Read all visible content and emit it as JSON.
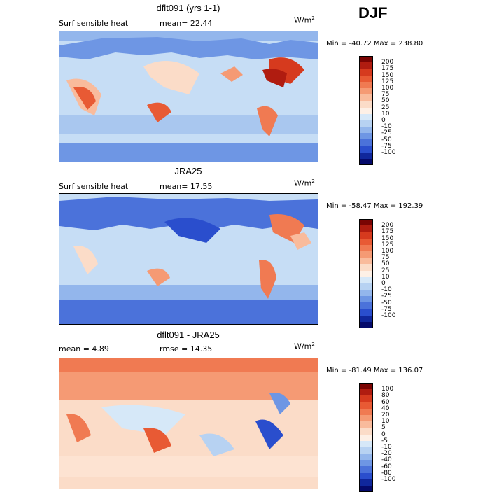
{
  "season": "DJF",
  "panels": [
    {
      "title": "dflt091 (yrs 1-1)",
      "left_label": "Surf sensible heat",
      "stat_label": "mean=  22.44",
      "units": "W/m",
      "units_sup": "2",
      "minmax": "Min = -40.72 Max = 238.80",
      "levels": [
        "200",
        "175",
        "150",
        "125",
        "100",
        "75",
        "50",
        "25",
        "10",
        "0",
        "-10",
        "-25",
        "-50",
        "-75",
        "-100"
      ]
    },
    {
      "title": "JRA25",
      "left_label": "Surf sensible heat",
      "stat_label": "mean=  17.55",
      "units": "W/m",
      "units_sup": "2",
      "minmax": "Min = -58.47 Max = 192.39",
      "levels": [
        "200",
        "175",
        "150",
        "125",
        "100",
        "75",
        "50",
        "25",
        "10",
        "0",
        "-10",
        "-25",
        "-50",
        "-75",
        "-100"
      ]
    },
    {
      "title": "dflt091 - JRA25",
      "left_label": "mean =    4.89",
      "stat_label": "rmse =  14.35",
      "units": "W/m",
      "units_sup": "2",
      "minmax": "Min = -81.49 Max = 136.07",
      "levels": [
        "100",
        "80",
        "60",
        "40",
        "20",
        "10",
        "5",
        "0",
        "-5",
        "-10",
        "-20",
        "-40",
        "-60",
        "-80",
        "-100"
      ]
    }
  ],
  "colors": {
    "colorbar": [
      "#7a0403",
      "#b01c10",
      "#d63a1e",
      "#e85a34",
      "#f07a52",
      "#f59a74",
      "#f9bb9c",
      "#fbdcc8",
      "#fdf0e6",
      "#d6e8f8",
      "#b7d2f2",
      "#93b6ec",
      "#6e96e4",
      "#4b72da",
      "#2a4ecd",
      "#10279c",
      "#050a6b"
    ],
    "ocean_light": "#c6ddf5",
    "ocean_mid": "#a9c7ef",
    "cold": "#5f8ee6",
    "warm": "#f2a27e",
    "hot": "#e05a32",
    "land_light": "#fde3d2"
  }
}
